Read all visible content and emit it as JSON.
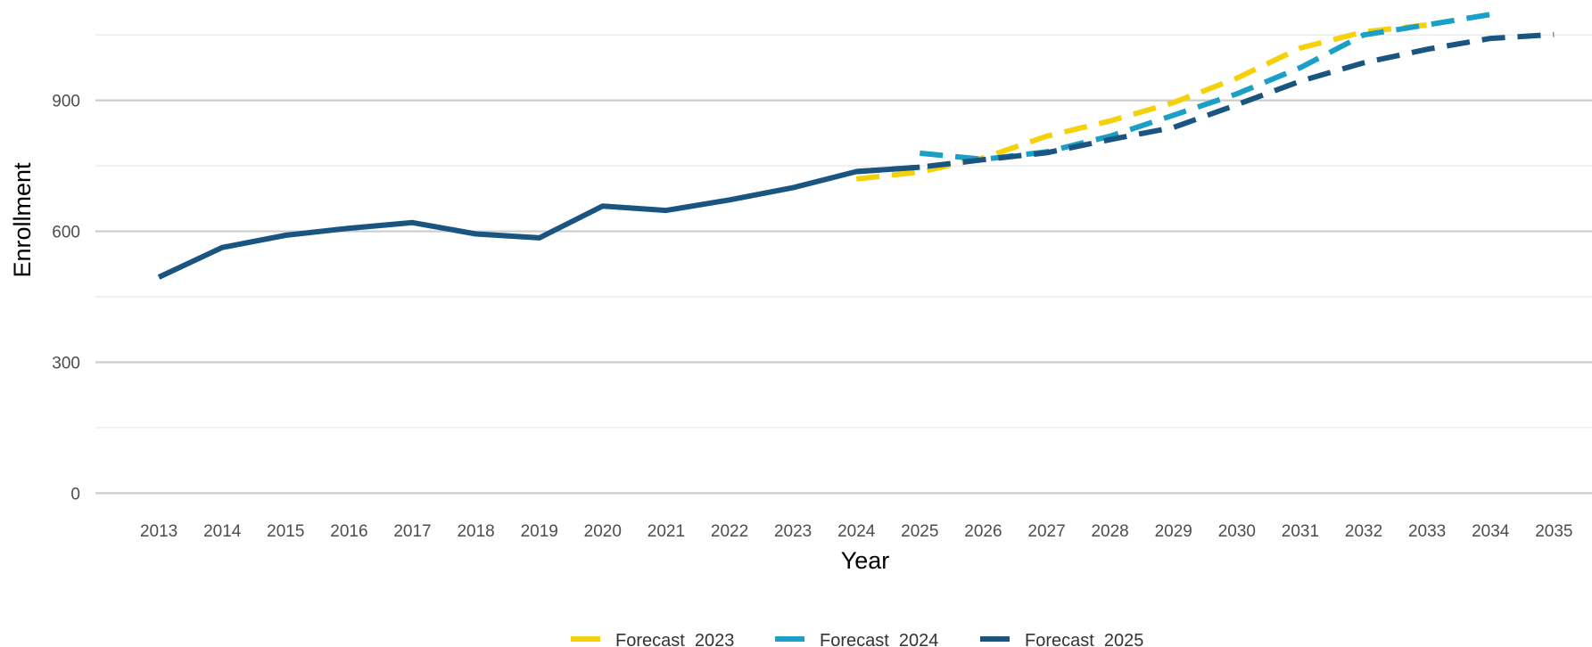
{
  "chart_data": {
    "type": "line",
    "title": "",
    "xlabel": "Year",
    "ylabel": "Enrollment",
    "xlim": [
      2012.0,
      2035.6
    ],
    "ylim": [
      -40,
      1130
    ],
    "y_ticks": [
      0,
      300,
      600,
      900
    ],
    "x_ticks": [
      2013,
      2014,
      2015,
      2016,
      2017,
      2018,
      2019,
      2020,
      2021,
      2022,
      2023,
      2024,
      2025,
      2026,
      2027,
      2028,
      2029,
      2030,
      2031,
      2032,
      2033,
      2034,
      2035
    ],
    "grid": true,
    "legend_position": "bottom",
    "colors": {
      "actual": "#1a5582",
      "Forecast_2023": "#f5d10a",
      "Forecast_2024": "#1a9fc6",
      "Forecast_2025": "#1a5582",
      "grid_major": "#cccccc",
      "grid_minor": "#e8e8e8"
    },
    "actual": {
      "x": [
        2013,
        2014,
        2015,
        2016,
        2017,
        2018,
        2019,
        2020,
        2021,
        2022,
        2023,
        2024,
        2025
      ],
      "values": [
        495,
        563,
        591,
        607,
        620,
        594,
        585,
        658,
        648,
        672,
        700,
        737,
        747
      ]
    },
    "series": [
      {
        "name": "Forecast_2023",
        "x": [
          2024,
          2025,
          2026,
          2027,
          2028,
          2029,
          2030,
          2031,
          2032,
          2033
        ],
        "values": [
          720,
          736,
          768,
          818,
          853,
          895,
          951,
          1020,
          1057,
          1073
        ]
      },
      {
        "name": "Forecast_2024",
        "x": [
          2025,
          2026,
          2027,
          2028,
          2029,
          2030,
          2031,
          2032,
          2033,
          2034
        ],
        "values": [
          779,
          765,
          782,
          818,
          866,
          915,
          975,
          1050,
          1073,
          1097
        ]
      },
      {
        "name": "Forecast_2025",
        "x": [
          2024,
          2025,
          2026,
          2027,
          2028,
          2029,
          2030,
          2031,
          2032,
          2033,
          2034,
          2035
        ],
        "values": [
          737,
          747,
          764,
          780,
          810,
          838,
          890,
          944,
          986,
          1017,
          1042,
          1051
        ]
      }
    ]
  }
}
